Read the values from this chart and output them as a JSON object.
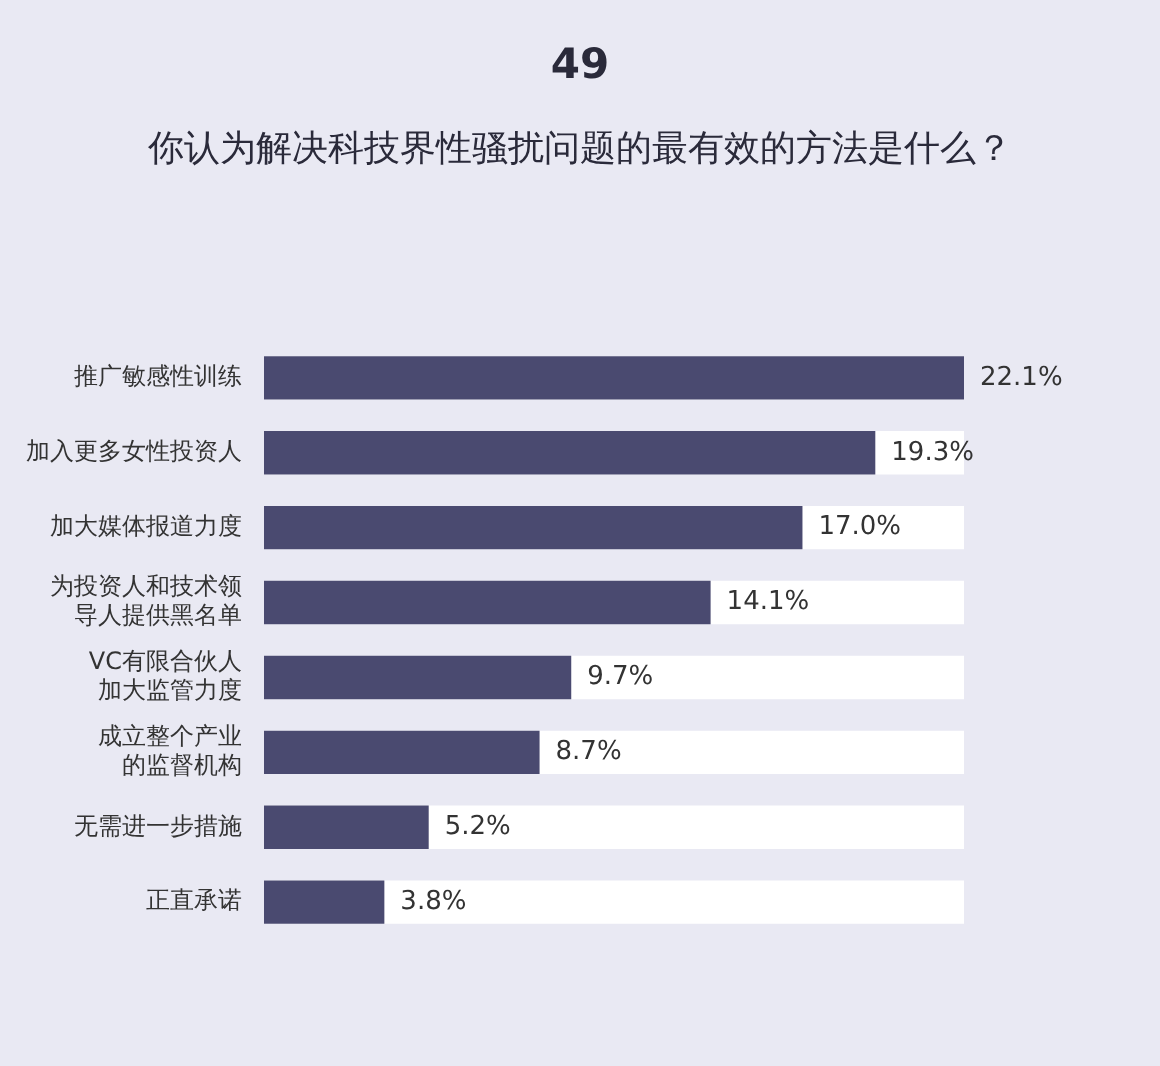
{
  "chart_data": {
    "type": "bar",
    "orientation": "horizontal",
    "title": "49",
    "subtitle": "你认为解决科技界性骚扰问题的最有效的方法是什么？",
    "categories": [
      "推广敏感性训练",
      "加入更多女性投资人",
      "加大媒体报道力度",
      "为投资人和技术领导人提供黑名单",
      "VC有限合伙人加大监管力度",
      "成立整个产业的监督机构",
      "无需进一步措施",
      "正直承诺"
    ],
    "values": [
      22.1,
      19.3,
      17.0,
      14.1,
      9.7,
      8.7,
      5.2,
      3.8
    ],
    "value_labels": [
      "22.1%",
      "19.3%",
      "17.0%",
      "14.1%",
      "9.7%",
      "8.7%",
      "5.2%",
      "3.8%"
    ],
    "color": "#4a4a70",
    "legend": false
  }
}
